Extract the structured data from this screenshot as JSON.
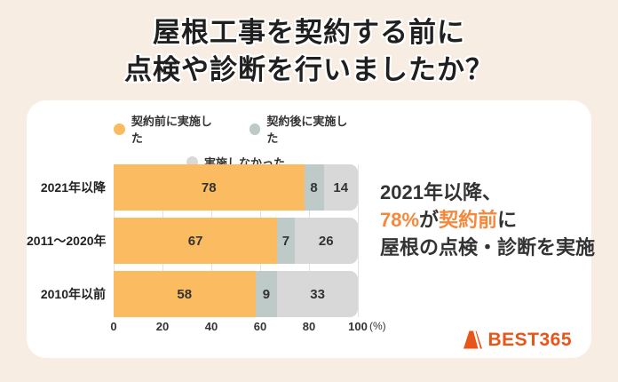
{
  "title": {
    "line1": "屋根工事を契約する前に",
    "line2": "点検や診断を行いましたか？"
  },
  "chart_data": {
    "type": "bar",
    "orientation": "horizontal-stacked",
    "title": "屋根工事を契約する前に点検や診断を行いましたか？",
    "categories": [
      "2021年以降",
      "2011～2020年",
      "2010年以前"
    ],
    "series": [
      {
        "name": "契約前に実施した",
        "color": "#FBBB60",
        "values": [
          78,
          67,
          58
        ]
      },
      {
        "name": "契約後に実施した",
        "color": "#BECAC7",
        "values": [
          8,
          7,
          9
        ]
      },
      {
        "name": "実施しなかった",
        "color": "#D8D8D8",
        "values": [
          14,
          26,
          33
        ]
      }
    ],
    "x_ticks": [
      0,
      20,
      40,
      60,
      80,
      100
    ],
    "x_unit": "(%)",
    "xlim": [
      0,
      100
    ],
    "grid": true,
    "legend_position": "top-center",
    "value_labels": "inside-center"
  },
  "insight": {
    "line1": "2021年以降、",
    "line2_parts": [
      {
        "text": "78%",
        "accent": true
      },
      {
        "text": "が",
        "accent": false
      },
      {
        "text": "契約前",
        "accent": true
      },
      {
        "text": "に",
        "accent": false
      }
    ],
    "line3": "屋根の点検・診断を実施",
    "accent_color": "#F6873B"
  },
  "logo": {
    "text": "BEST365",
    "color": "#E8551A",
    "icon": "roof-trapezoid-icon"
  },
  "colors": {
    "page_background": "#F7EDE2",
    "card_background": "#FFFFFF",
    "gridline": "#E2E2E2",
    "title_text": "#1F1F1F"
  }
}
